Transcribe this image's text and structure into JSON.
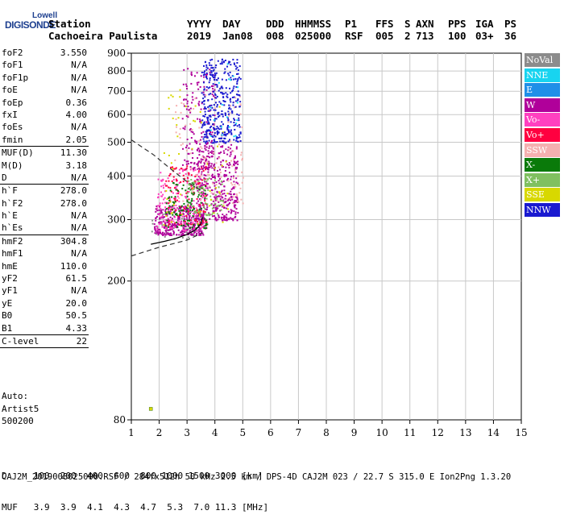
{
  "logo": {
    "top": "Lowell",
    "main": "DIGISONDE"
  },
  "header": {
    "row1": [
      "Station",
      "YYYY",
      "DAY",
      "DDD",
      "HHMMSS",
      "P1",
      "FFS",
      "S",
      "AXN",
      "PPS",
      "IGA",
      "PS"
    ],
    "row2": [
      "Cachoeira Paulista",
      "2019",
      "Jan08",
      "008",
      "025000",
      "RSF",
      "005",
      "2",
      "713",
      "100",
      "03+",
      "36"
    ]
  },
  "params": [
    {
      "name": "foF2",
      "value": "3.550"
    },
    {
      "name": "foF1",
      "value": "N/A"
    },
    {
      "name": "foF1p",
      "value": "N/A"
    },
    {
      "name": "foE",
      "value": "N/A"
    },
    {
      "name": "foEp",
      "value": "0.36"
    },
    {
      "name": "fxI",
      "value": "4.00"
    },
    {
      "name": "foEs",
      "value": "N/A"
    },
    {
      "name": "fmin",
      "value": "2.05",
      "sep": true
    },
    {
      "name": "MUF(D)",
      "value": "11.30"
    },
    {
      "name": "M(D)",
      "value": "3.18"
    },
    {
      "name": "D",
      "value": "N/A",
      "sep": true
    },
    {
      "name": "h`F",
      "value": "278.0"
    },
    {
      "name": "h`F2",
      "value": "278.0"
    },
    {
      "name": "h`E",
      "value": "N/A"
    },
    {
      "name": "h`Es",
      "value": "N/A",
      "sep": true
    },
    {
      "name": "hmF2",
      "value": "304.8"
    },
    {
      "name": "hmF1",
      "value": "N/A"
    },
    {
      "name": "hmE",
      "value": "110.0"
    },
    {
      "name": "yF2",
      "value": "61.5"
    },
    {
      "name": "yF1",
      "value": "N/A"
    },
    {
      "name": "yE",
      "value": "20.0"
    },
    {
      "name": "B0",
      "value": "50.5"
    },
    {
      "name": "B1",
      "value": "4.33",
      "sep": true
    },
    {
      "name": "C-level",
      "value": "22",
      "sep": true
    }
  ],
  "auto": {
    "line1": "Auto:",
    "line2": "Artist5",
    "line3": "500200"
  },
  "legend": [
    {
      "label": "NoVal",
      "color": "#8c8c8c"
    },
    {
      "label": "NNE",
      "color": "#18d4f0"
    },
    {
      "label": "E",
      "color": "#1f8fe8"
    },
    {
      "label": "W",
      "color": "#b0009a"
    },
    {
      "label": "Vo-",
      "color": "#ff40c0"
    },
    {
      "label": "Vo+",
      "color": "#ff0040"
    },
    {
      "label": "SSW",
      "color": "#f5b0b0"
    },
    {
      "label": "X-",
      "color": "#0a7a0a"
    },
    {
      "label": "X+",
      "color": "#80c060"
    },
    {
      "label": "SSE",
      "color": "#d8d800"
    },
    {
      "label": "NNW",
      "color": "#1a1ad0"
    }
  ],
  "footer": {
    "line1": "D     100  200  400  600  800 1000 1500 3000 [km]",
    "line2": "MUF   3.9  3.9  4.1  4.3  4.7  5.3  7.0 11.3 [MHz]",
    "line3": "CAJ2M_2019008025000.RSF / 284fx512h 50 kHz 2.5 km / DPS-4D CAJ2M 023 / 22.7 S 315.0 E Ion2Png 1.3.20"
  },
  "chart_data": {
    "type": "scatter",
    "xlim": [
      1,
      15
    ],
    "ylim": [
      80,
      900
    ],
    "x_ticks": [
      1,
      2,
      3,
      4,
      5,
      6,
      7,
      8,
      9,
      10,
      11,
      12,
      13,
      14,
      15
    ],
    "y_ticks": [
      80,
      200,
      300,
      400,
      500,
      600,
      700,
      800,
      900
    ],
    "y_scale": "log",
    "grid": true,
    "legend_position": "right",
    "profile_curve": [
      [
        1.7,
        255
      ],
      [
        2.2,
        260
      ],
      [
        2.6,
        265
      ],
      [
        3.0,
        272
      ],
      [
        3.3,
        280
      ],
      [
        3.5,
        292
      ],
      [
        3.55,
        305
      ]
    ],
    "dashed_curve_1": [
      [
        1.0,
        508
      ],
      [
        1.8,
        460
      ],
      [
        2.4,
        420
      ],
      [
        3.0,
        385
      ],
      [
        3.55,
        362
      ]
    ],
    "dashed_curve_2": [
      [
        1.0,
        236
      ],
      [
        2.0,
        250
      ],
      [
        3.0,
        262
      ],
      [
        3.55,
        275
      ]
    ],
    "clusters": [
      {
        "name": "NoVal",
        "color": "#8c8c8c",
        "xr": [
          1.7,
          3.6
        ],
        "yr": [
          265,
          330
        ],
        "n": 60
      },
      {
        "name": "W",
        "color": "#b0009a",
        "xr": [
          1.8,
          3.6
        ],
        "yr": [
          272,
          330
        ],
        "n": 320
      },
      {
        "name": "W",
        "color": "#b0009a",
        "xr": [
          3.3,
          4.8
        ],
        "yr": [
          300,
          500
        ],
        "n": 380
      },
      {
        "name": "W",
        "color": "#b0009a",
        "xr": [
          2.8,
          4.0
        ],
        "yr": [
          420,
          820
        ],
        "n": 170
      },
      {
        "name": "Vo-",
        "color": "#ff40c0",
        "xr": [
          1.9,
          3.7
        ],
        "yr": [
          280,
          420
        ],
        "n": 160
      },
      {
        "name": "Vo+",
        "color": "#ff0040",
        "xr": [
          2.2,
          3.7
        ],
        "yr": [
          290,
          430
        ],
        "n": 120
      },
      {
        "name": "SSW",
        "color": "#f5b0b0",
        "xr": [
          2.5,
          5.0
        ],
        "yr": [
          330,
          700
        ],
        "n": 140
      },
      {
        "name": "X-",
        "color": "#0a7a0a",
        "xr": [
          2.2,
          3.7
        ],
        "yr": [
          285,
          385
        ],
        "n": 110
      },
      {
        "name": "X+",
        "color": "#80c060",
        "xr": [
          3.0,
          4.3
        ],
        "yr": [
          310,
          400
        ],
        "n": 70
      },
      {
        "name": "SSE",
        "color": "#d8d800",
        "xr": [
          2.0,
          4.5
        ],
        "yr": [
          290,
          720
        ],
        "n": 60
      },
      {
        "name": "NNW",
        "color": "#1a1ad0",
        "xr": [
          3.5,
          4.9
        ],
        "yr": [
          500,
          870
        ],
        "n": 360
      },
      {
        "name": "NNE",
        "color": "#18d4f0",
        "xr": [
          3.8,
          4.8
        ],
        "yr": [
          520,
          870
        ],
        "n": 20
      }
    ],
    "isolated_point": {
      "x": 1.7,
      "y": 86,
      "color": "#d8d800"
    }
  }
}
